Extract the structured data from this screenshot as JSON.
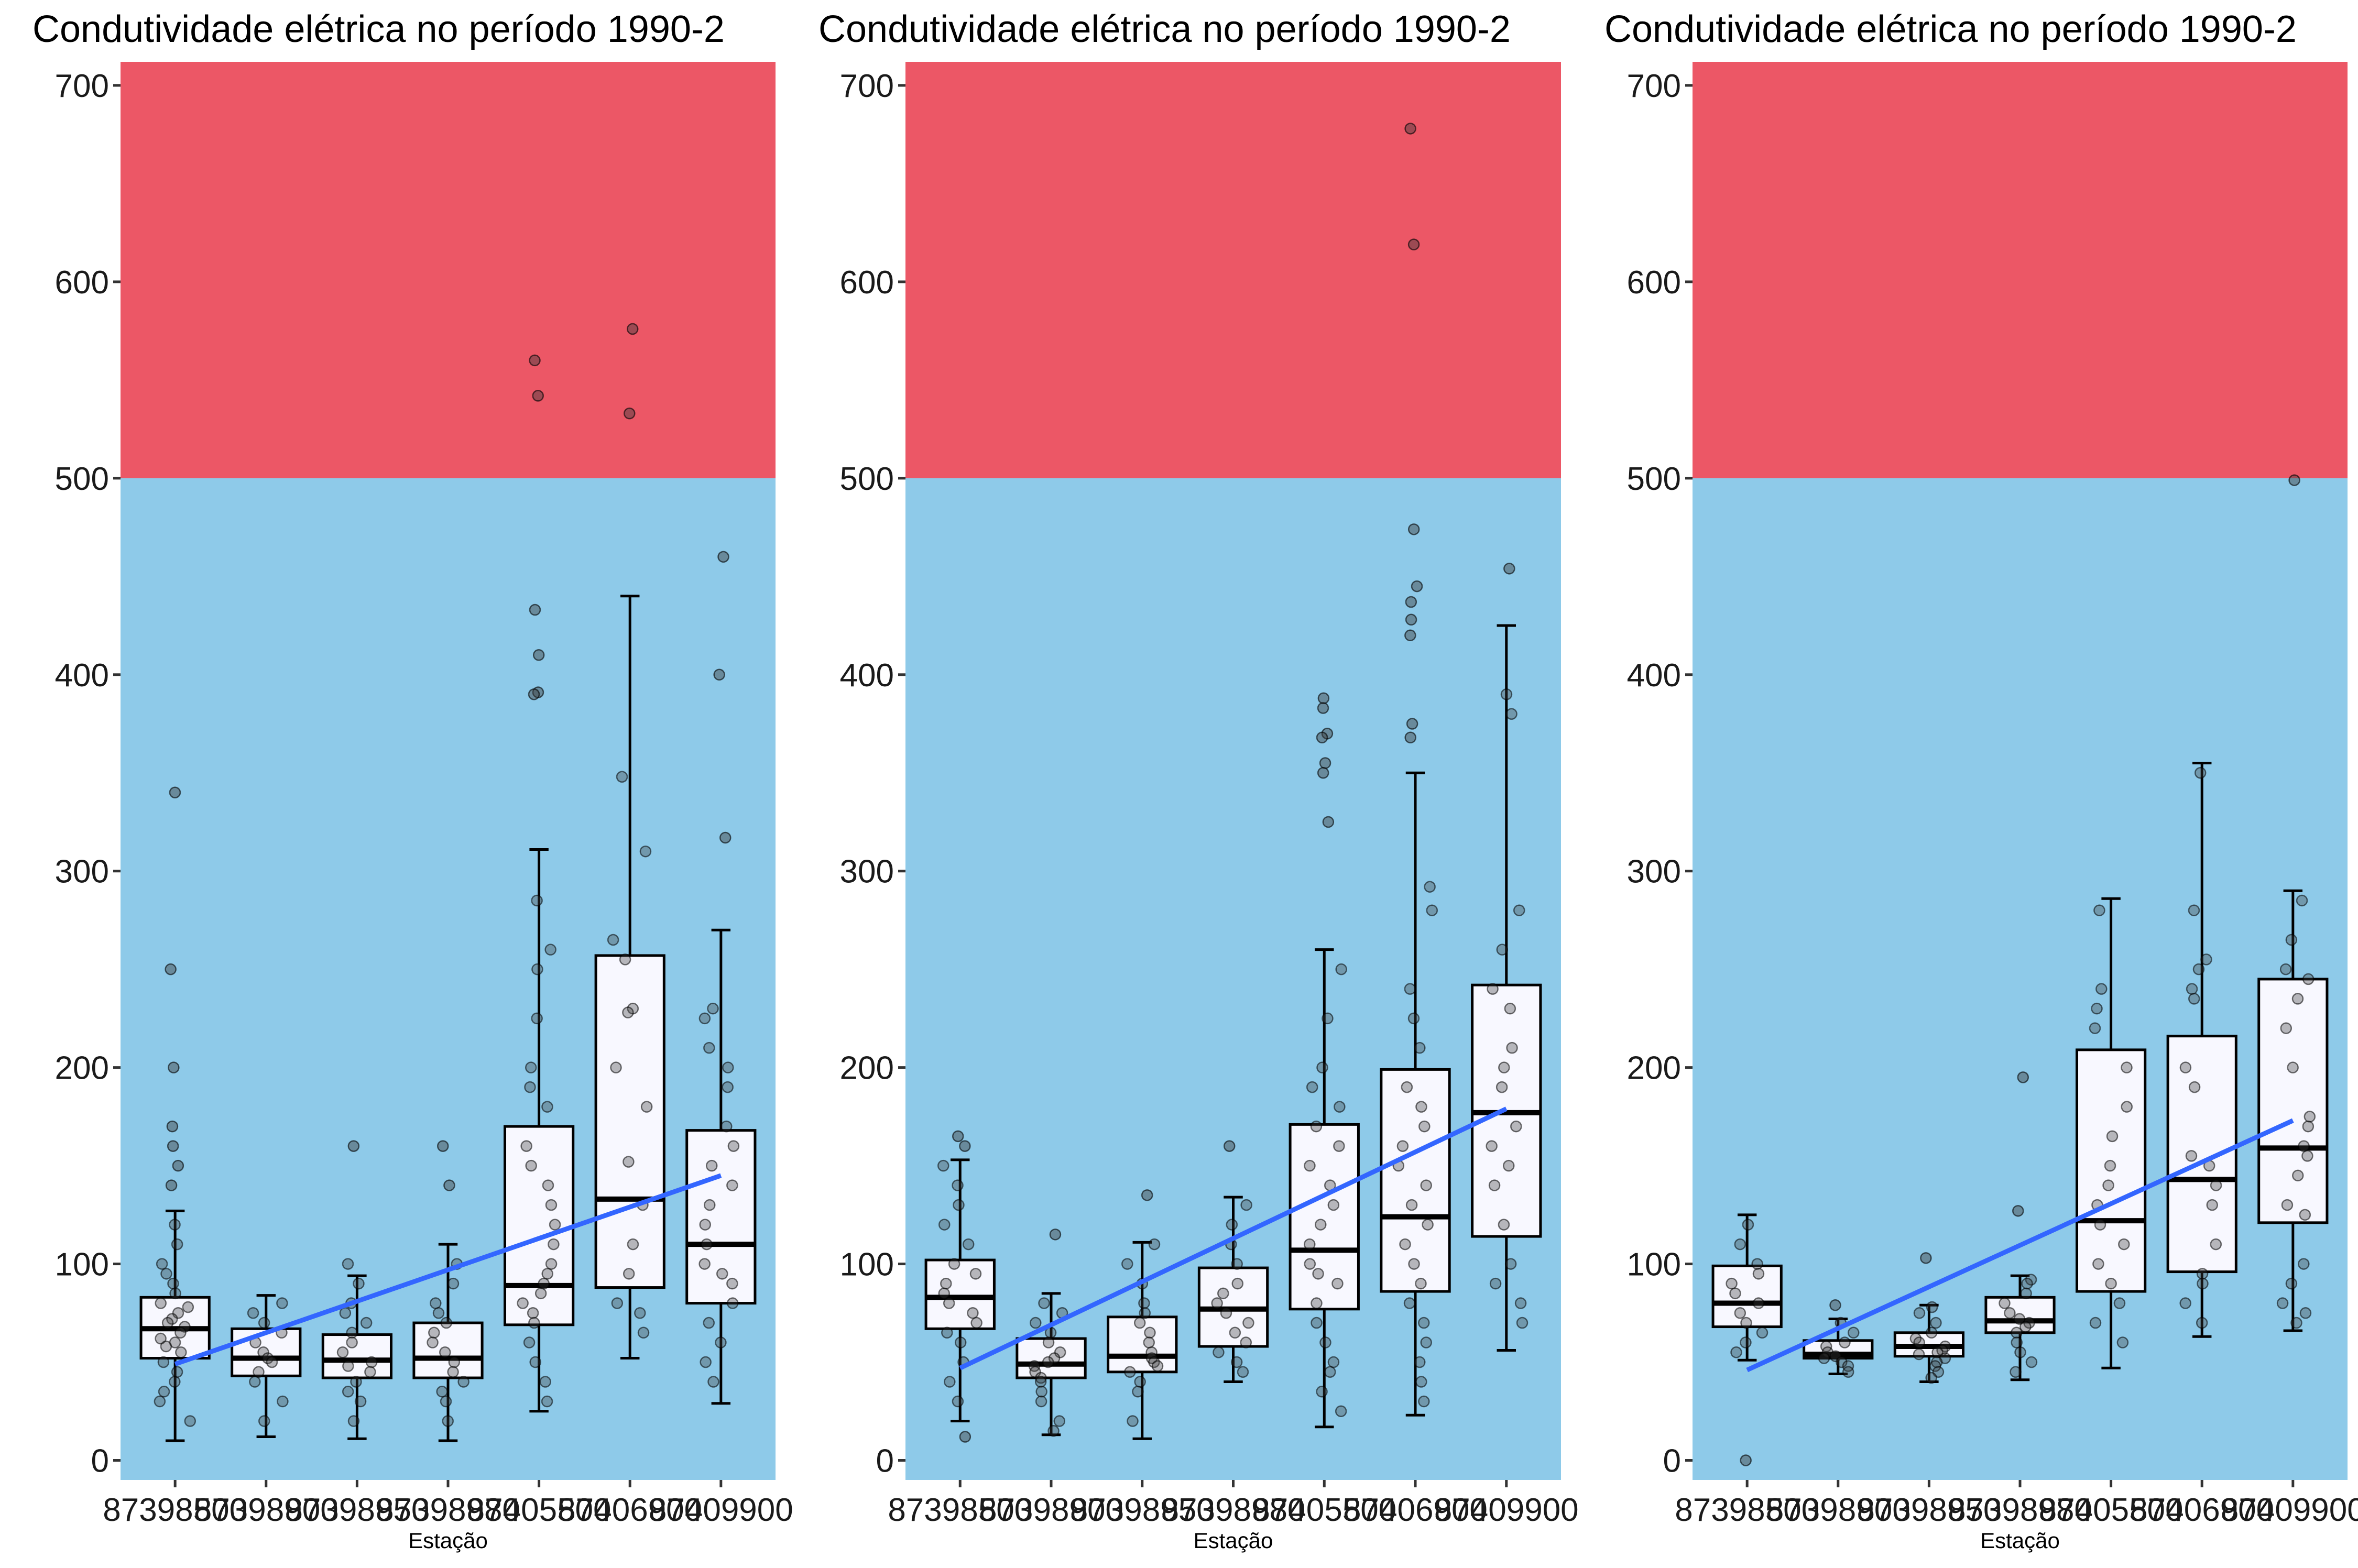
{
  "chart_data": [
    {
      "type": "boxplot",
      "title": "Condutividade elétrica no período 1990-2",
      "xlabel": "Estação",
      "ylabel": "",
      "ylim": [
        -10,
        712
      ],
      "yticks": [
        0,
        100,
        200,
        300,
        400,
        500,
        600,
        700
      ],
      "background_bands": [
        {
          "from": 500,
          "to": 712,
          "color": "#EC5766"
        },
        {
          "from": -10,
          "to": 500,
          "color": "#8ECAE9"
        }
      ],
      "categories": [
        "87398500",
        "87398900",
        "87398950",
        "87398980",
        "87405500",
        "87406900",
        "87409900"
      ],
      "boxes": [
        {
          "min": 10,
          "q1": 52,
          "median": 67,
          "q3": 83,
          "max": 127
        },
        {
          "min": 12,
          "q1": 43,
          "median": 52,
          "q3": 67,
          "max": 84
        },
        {
          "min": 11,
          "q1": 42,
          "median": 51,
          "q3": 64,
          "max": 94
        },
        {
          "min": 10,
          "q1": 42,
          "median": 52,
          "q3": 70,
          "max": 110
        },
        {
          "min": 25,
          "q1": 69,
          "median": 89,
          "q3": 170,
          "max": 311
        },
        {
          "min": 52,
          "q1": 88,
          "median": 133,
          "q3": 257,
          "max": 440
        },
        {
          "min": 29,
          "q1": 80,
          "median": 110,
          "q3": 168,
          "max": 270
        }
      ],
      "outliers": [
        [
          340,
          250,
          200,
          170,
          160,
          150,
          140
        ],
        [],
        [
          160
        ],
        [
          160,
          140
        ],
        [
          560,
          542,
          433,
          410,
          391,
          390
        ],
        [
          576,
          533
        ],
        [
          460,
          400,
          317
        ]
      ],
      "jitter": [
        [
          120,
          110,
          100,
          95,
          90,
          85,
          80,
          78,
          75,
          72,
          70,
          68,
          65,
          62,
          60,
          58,
          55,
          50,
          45,
          40,
          35,
          30,
          20
        ],
        [
          80,
          75,
          70,
          65,
          60,
          55,
          52,
          50,
          45,
          40,
          30,
          20
        ],
        [
          100,
          90,
          80,
          75,
          70,
          65,
          60,
          55,
          50,
          48,
          45,
          40,
          35,
          30,
          20
        ],
        [
          100,
          90,
          80,
          75,
          70,
          65,
          60,
          55,
          50,
          45,
          40,
          35,
          30,
          20
        ],
        [
          285,
          260,
          250,
          225,
          200,
          190,
          180,
          160,
          150,
          140,
          130,
          120,
          110,
          100,
          95,
          90,
          85,
          80,
          75,
          70,
          60,
          50,
          40,
          30
        ],
        [
          348,
          310,
          265,
          255,
          230,
          228,
          200,
          180,
          152,
          130,
          110,
          95,
          80,
          75,
          65
        ],
        [
          230,
          225,
          210,
          200,
          190,
          170,
          160,
          150,
          140,
          130,
          120,
          110,
          100,
          95,
          90,
          80,
          70,
          60,
          50,
          40
        ]
      ],
      "trend": {
        "x_start": 1,
        "y_start": 49,
        "x_end": 7,
        "y_end": 145,
        "color": "#3366FF"
      }
    },
    {
      "type": "boxplot",
      "title": "Condutividade elétrica no período 1990-2",
      "xlabel": "Estação",
      "ylabel": "",
      "ylim": [
        -10,
        712
      ],
      "yticks": [
        0,
        100,
        200,
        300,
        400,
        500,
        600,
        700
      ],
      "background_bands": [
        {
          "from": 500,
          "to": 712,
          "color": "#EC5766"
        },
        {
          "from": -10,
          "to": 500,
          "color": "#8ECAE9"
        }
      ],
      "categories": [
        "87398500",
        "87398900",
        "87398950",
        "87398980",
        "87405500",
        "87406900",
        "87409900"
      ],
      "boxes": [
        {
          "min": 20,
          "q1": 67,
          "median": 83,
          "q3": 102,
          "max": 153
        },
        {
          "min": 13,
          "q1": 42,
          "median": 49,
          "q3": 62,
          "max": 85
        },
        {
          "min": 11,
          "q1": 45,
          "median": 53,
          "q3": 73,
          "max": 111
        },
        {
          "min": 40,
          "q1": 58,
          "median": 77,
          "q3": 98,
          "max": 134
        },
        {
          "min": 17,
          "q1": 77,
          "median": 107,
          "q3": 171,
          "max": 260
        },
        {
          "min": 23,
          "q1": 86,
          "median": 124,
          "q3": 199,
          "max": 350
        },
        {
          "min": 56,
          "q1": 114,
          "median": 177,
          "q3": 242,
          "max": 425
        }
      ],
      "outliers": [
        [
          165,
          160,
          12
        ],
        [
          115
        ],
        [
          135
        ],
        [
          160
        ],
        [
          388,
          383,
          370,
          368,
          355,
          350,
          325
        ],
        [
          678,
          474,
          445,
          437,
          428,
          420,
          375,
          368,
          619
        ],
        [
          454
        ]
      ],
      "jitter": [
        [
          150,
          140,
          130,
          120,
          110,
          100,
          95,
          90,
          85,
          80,
          75,
          70,
          65,
          60,
          50,
          40,
          30
        ],
        [
          80,
          75,
          70,
          65,
          60,
          55,
          52,
          50,
          48,
          45,
          42,
          40,
          35,
          30,
          20,
          15
        ],
        [
          110,
          100,
          90,
          80,
          75,
          70,
          65,
          60,
          55,
          52,
          50,
          48,
          45,
          40,
          35,
          20
        ],
        [
          130,
          120,
          110,
          100,
          90,
          85,
          80,
          75,
          70,
          65,
          60,
          55,
          50,
          45
        ],
        [
          250,
          225,
          200,
          190,
          180,
          170,
          160,
          150,
          140,
          130,
          120,
          110,
          100,
          95,
          90,
          80,
          70,
          60,
          50,
          45,
          35,
          25
        ],
        [
          292,
          280,
          240,
          225,
          210,
          190,
          180,
          170,
          160,
          150,
          140,
          130,
          120,
          110,
          100,
          90,
          80,
          70,
          60,
          50,
          40,
          30
        ],
        [
          390,
          380,
          280,
          260,
          240,
          230,
          210,
          200,
          190,
          170,
          160,
          150,
          140,
          120,
          100,
          90,
          80,
          70
        ]
      ],
      "trend": {
        "x_start": 1,
        "y_start": 47,
        "x_end": 7,
        "y_end": 179,
        "color": "#3366FF"
      }
    },
    {
      "type": "boxplot",
      "title": "Condutividade elétrica no período 1990-2",
      "xlabel": "Estação",
      "ylabel": "",
      "ylim": [
        -10,
        712
      ],
      "yticks": [
        0,
        100,
        200,
        300,
        400,
        500,
        600,
        700
      ],
      "background_bands": [
        {
          "from": 500,
          "to": 712,
          "color": "#EC5766"
        },
        {
          "from": -10,
          "to": 500,
          "color": "#8ECAE9"
        }
      ],
      "categories": [
        "87398500",
        "87398900",
        "87398950",
        "87398980",
        "87405500",
        "87406900",
        "87409900"
      ],
      "boxes": [
        {
          "min": 51,
          "q1": 68,
          "median": 80,
          "q3": 99,
          "max": 125
        },
        {
          "min": 44,
          "q1": 52,
          "median": 54,
          "q3": 61,
          "max": 72
        },
        {
          "min": 40,
          "q1": 53,
          "median": 58,
          "q3": 65,
          "max": 79
        },
        {
          "min": 41,
          "q1": 65,
          "median": 71,
          "q3": 83,
          "max": 94
        },
        {
          "min": 47,
          "q1": 86,
          "median": 122,
          "q3": 209,
          "max": 286
        },
        {
          "min": 63,
          "q1": 96,
          "median": 143,
          "q3": 216,
          "max": 355
        },
        {
          "min": 66,
          "q1": 121,
          "median": 159,
          "q3": 245,
          "max": 290
        }
      ],
      "outliers": [
        [
          0
        ],
        [
          79
        ],
        [
          103
        ],
        [
          195,
          127
        ],
        [],
        [],
        [
          499
        ]
      ],
      "jitter": [
        [
          120,
          110,
          100,
          95,
          90,
          85,
          80,
          75,
          70,
          65,
          60,
          55
        ],
        [
          70,
          65,
          60,
          58,
          55,
          53,
          52,
          50,
          48,
          45
        ],
        [
          78,
          75,
          70,
          65,
          62,
          60,
          58,
          56,
          55,
          54,
          52,
          50,
          48,
          45,
          42
        ],
        [
          92,
          90,
          85,
          80,
          75,
          72,
          70,
          68,
          65,
          60,
          55,
          50,
          45
        ],
        [
          280,
          240,
          230,
          220,
          200,
          180,
          165,
          150,
          140,
          130,
          120,
          110,
          100,
          90,
          80,
          70,
          60
        ],
        [
          350,
          280,
          255,
          250,
          240,
          235,
          200,
          190,
          155,
          150,
          140,
          130,
          110,
          95,
          90,
          80,
          70
        ],
        [
          285,
          265,
          250,
          245,
          235,
          220,
          200,
          175,
          170,
          160,
          155,
          145,
          130,
          125,
          100,
          90,
          80,
          75,
          70
        ]
      ],
      "trend": {
        "x_start": 1,
        "y_start": 46,
        "x_end": 7,
        "y_end": 173,
        "color": "#3366FF"
      }
    }
  ]
}
